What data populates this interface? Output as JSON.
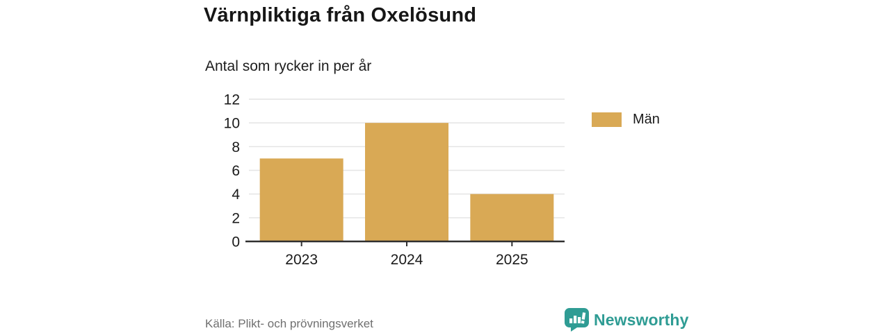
{
  "header": {
    "title": "Värnpliktiga från Oxelösund",
    "subtitle": "Antal som rycker in per år"
  },
  "chart_data": {
    "type": "bar",
    "title": "Värnpliktiga från Oxelösund",
    "subtitle": "Antal som rycker in per år",
    "categories": [
      "2023",
      "2024",
      "2025"
    ],
    "series": [
      {
        "name": "Män",
        "values": [
          7,
          10,
          4
        ],
        "color": "#d9a955"
      }
    ],
    "xlabel": "",
    "ylabel": "",
    "ylim": [
      0,
      12
    ],
    "yticks": [
      0,
      2,
      4,
      6,
      8,
      10,
      12
    ],
    "grid": true,
    "legend_position": "right"
  },
  "legend": {
    "items": [
      {
        "label": "Män",
        "color": "#d9a955"
      }
    ]
  },
  "footer": {
    "source": "Källa: Plikt- och prövningsverket",
    "brand": "Newsworthy"
  },
  "icons": {
    "brand_icon": "speech-bubble-bar-chart-icon"
  },
  "colors": {
    "bar": "#d9a955",
    "brand_teal": "#2f9c94",
    "axis": "#2f2f2f",
    "gridline": "#e4e4e4",
    "title_text": "#161616",
    "source_text": "#6f6f6f"
  }
}
